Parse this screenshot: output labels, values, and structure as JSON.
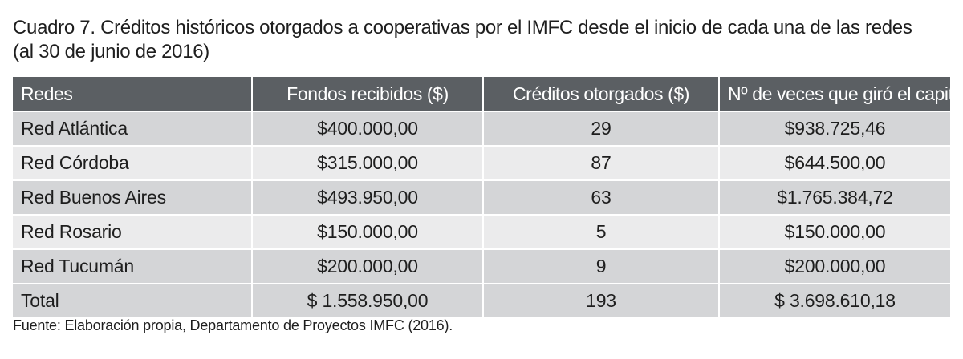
{
  "title": {
    "line1": "Cuadro 7. Créditos históricos otorgados a cooperativas por el IMFC desde el inicio de cada una de las redes",
    "line2": "(al 30 de junio de 2016)"
  },
  "table": {
    "headers": [
      "Redes",
      "Fondos recibidos ($)",
      "Créditos otorgados ($)",
      "Nº de veces que giró el capital"
    ],
    "rows": [
      [
        "Red Atlántica",
        "$400.000,00",
        "29",
        "$938.725,46"
      ],
      [
        "Red Córdoba",
        "$315.000,00",
        "87",
        "$644.500,00"
      ],
      [
        "Red Buenos Aires",
        "$493.950,00",
        "63",
        "$1.765.384,72"
      ],
      [
        "Red Rosario",
        "$150.000,00",
        "5",
        "$150.000,00"
      ],
      [
        "Red Tucumán",
        "$200.000,00",
        "9",
        "$200.000,00"
      ]
    ],
    "total": [
      "Total",
      "$ 1.558.950,00",
      "193",
      "$ 3.698.610,18"
    ]
  },
  "source": "Fuente: Elaboración propia, Departamento de Proyectos IMFC (2016).",
  "colors": {
    "header_bg": "#5b5f63",
    "row_dark": "#d4d5d7",
    "row_light": "#ebebec"
  }
}
